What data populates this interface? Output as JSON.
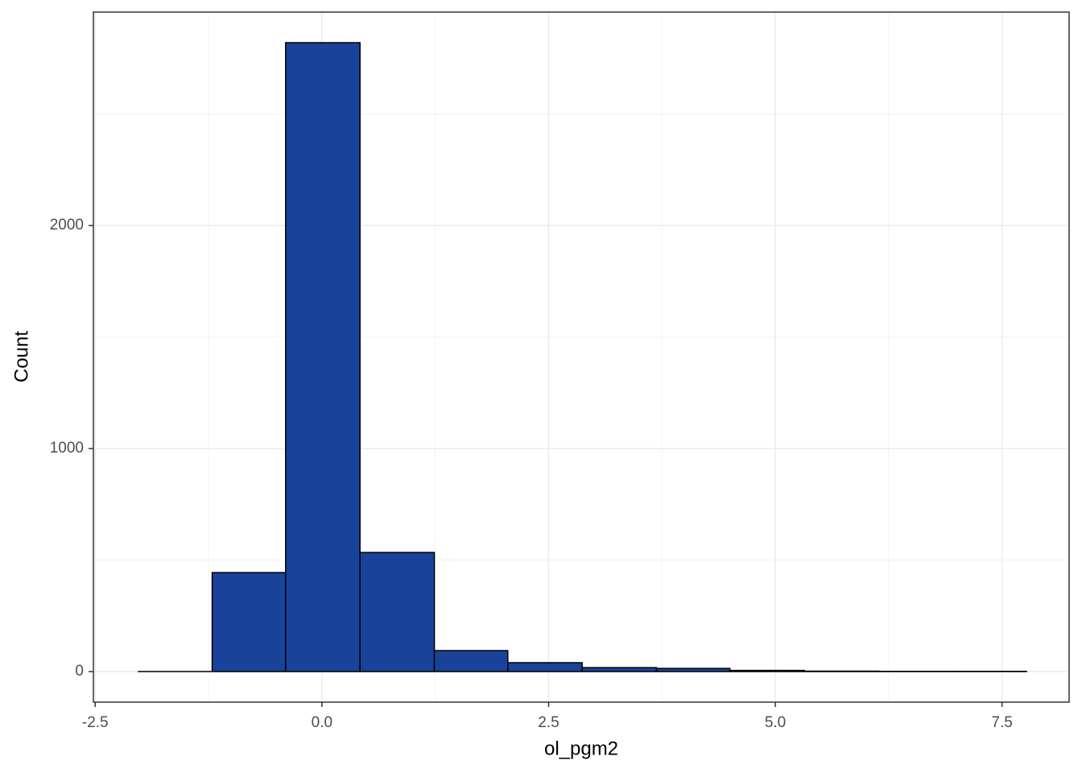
{
  "chart_data": {
    "type": "histogram",
    "x_label": "ol_pgm2",
    "y_label": "Count",
    "bins": [
      -2.03,
      -1.21,
      -0.4,
      0.42,
      1.24,
      2.05,
      2.87,
      3.69,
      4.5,
      5.32,
      6.14,
      6.95,
      7.77
    ],
    "values": [
      0,
      444,
      2820,
      534,
      94,
      40,
      18,
      14,
      5,
      2,
      1,
      1
    ],
    "color": "#19439a",
    "edge_color": "#000000",
    "xlim": [
      -2.52,
      8.24
    ],
    "ylim": [
      -137,
      2957
    ],
    "xticks": [
      -2.5,
      {
        "value": 0,
        "label": "0.0"
      },
      2.5,
      {
        "value": 5,
        "label": "5.0"
      },
      7.5
    ],
    "yticks": [
      0,
      1000,
      2000
    ],
    "grid": true
  }
}
